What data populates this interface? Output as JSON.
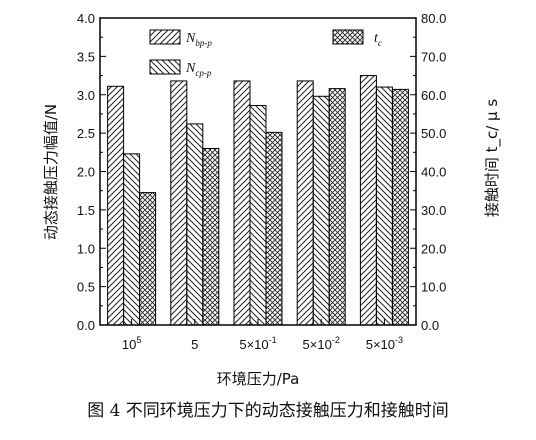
{
  "chart_data": {
    "type": "bar",
    "categories": [
      "10^5",
      "5",
      "5×10^-1",
      "5×10^-2",
      "5×10^-3"
    ],
    "xlabel": "环境压力/Pa",
    "ylabel_left": "动态接触压力幅值/N",
    "ylabel_right": "接触时间 t_c/ μ s",
    "ylim_left": [
      0,
      4.0
    ],
    "yticks_left": [
      "0.0",
      "0.5",
      "1.0",
      "1.5",
      "2.0",
      "2.5",
      "3.0",
      "3.5",
      "4.0"
    ],
    "ylim_right": [
      0,
      80
    ],
    "yticks_right": [
      "0.0",
      "10.0",
      "20.0",
      "30.0",
      "40.0",
      "50.0",
      "60.0",
      "70.0",
      "80.0"
    ],
    "grid": false,
    "legend_position": "top",
    "series": [
      {
        "name": "N_bp-p",
        "axis": "left",
        "pattern": "hatch-forward",
        "values": [
          3.11,
          3.18,
          3.18,
          3.18,
          3.25
        ]
      },
      {
        "name": "N_cp-p",
        "axis": "left",
        "pattern": "hatch-backward",
        "values": [
          2.23,
          2.62,
          2.86,
          2.98,
          3.1
        ]
      },
      {
        "name": "t_c",
        "axis": "right",
        "pattern": "crosshatch",
        "values": [
          34.5,
          46.0,
          50.2,
          61.6,
          61.4
        ]
      }
    ]
  },
  "caption": "图 4  不同环境压力下的动态接触压力和接触时间"
}
